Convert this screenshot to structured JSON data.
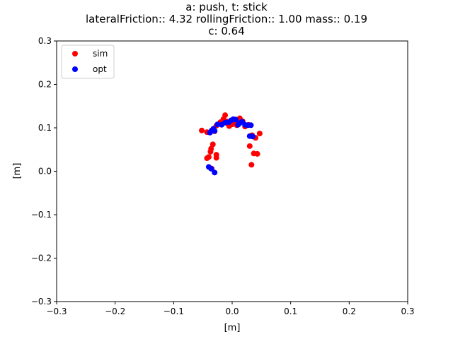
{
  "chart_data": {
    "type": "scatter",
    "title_lines": [
      "a: push, t: stick",
      "lateralFriction:: 4.32 rollingFriction:: 1.00 mass:: 0.19",
      "c: 0.64"
    ],
    "xlabel": "[m]",
    "ylabel": "[m]",
    "xlim": [
      -0.3,
      0.3
    ],
    "ylim": [
      -0.3,
      0.3
    ],
    "xticks": [
      -0.3,
      -0.2,
      -0.1,
      0.0,
      0.1,
      0.2,
      0.3
    ],
    "yticks": [
      -0.3,
      -0.2,
      -0.1,
      0.0,
      0.1,
      0.2,
      0.3
    ],
    "xtick_labels": [
      "−0.3",
      "−0.2",
      "−0.1",
      "0.0",
      "0.1",
      "0.2",
      "0.3"
    ],
    "ytick_labels": [
      "−0.3",
      "−0.2",
      "−0.1",
      "0.0",
      "0.1",
      "0.2",
      "0.3"
    ],
    "grid": false,
    "legend_position": "top-left",
    "series": [
      {
        "name": "sim",
        "color": "#ff0000",
        "points": [
          [
            -0.052,
            0.094
          ],
          [
            -0.043,
            0.09
          ],
          [
            -0.034,
            0.093
          ],
          [
            -0.03,
            0.092
          ],
          [
            -0.027,
            0.105
          ],
          [
            -0.02,
            0.113
          ],
          [
            -0.015,
            0.12
          ],
          [
            -0.012,
            0.129
          ],
          [
            -0.01,
            0.115
          ],
          [
            -0.008,
            0.11
          ],
          [
            -0.005,
            0.104
          ],
          [
            0.0,
            0.108
          ],
          [
            0.003,
            0.114
          ],
          [
            0.008,
            0.106
          ],
          [
            0.013,
            0.122
          ],
          [
            0.018,
            0.115
          ],
          [
            0.022,
            0.103
          ],
          [
            0.028,
            0.107
          ],
          [
            0.034,
            0.083
          ],
          [
            0.04,
            0.077
          ],
          [
            0.047,
            0.087
          ],
          [
            0.03,
            0.058
          ],
          [
            0.037,
            0.041
          ],
          [
            0.043,
            0.04
          ],
          [
            0.033,
            0.015
          ],
          [
            -0.033,
            0.062
          ],
          [
            -0.036,
            0.052
          ],
          [
            -0.037,
            0.045
          ],
          [
            -0.04,
            0.033
          ],
          [
            -0.043,
            0.03
          ],
          [
            -0.027,
            0.038
          ],
          [
            -0.027,
            0.031
          ],
          [
            -0.035,
            0.006
          ]
        ]
      },
      {
        "name": "opt",
        "color": "#0000ff",
        "points": [
          [
            -0.038,
            0.089
          ],
          [
            -0.035,
            0.094
          ],
          [
            -0.032,
            0.098
          ],
          [
            -0.03,
            0.093
          ],
          [
            -0.025,
            0.108
          ],
          [
            -0.018,
            0.107
          ],
          [
            -0.012,
            0.112
          ],
          [
            -0.006,
            0.113
          ],
          [
            -0.002,
            0.117
          ],
          [
            0.002,
            0.12
          ],
          [
            0.006,
            0.119
          ],
          [
            0.01,
            0.107
          ],
          [
            0.013,
            0.111
          ],
          [
            0.017,
            0.114
          ],
          [
            0.022,
            0.107
          ],
          [
            0.027,
            0.106
          ],
          [
            0.032,
            0.106
          ],
          [
            0.03,
            0.081
          ],
          [
            0.035,
            0.08
          ],
          [
            -0.04,
            0.01
          ],
          [
            -0.036,
            0.006
          ],
          [
            -0.03,
            -0.003
          ]
        ]
      }
    ]
  }
}
